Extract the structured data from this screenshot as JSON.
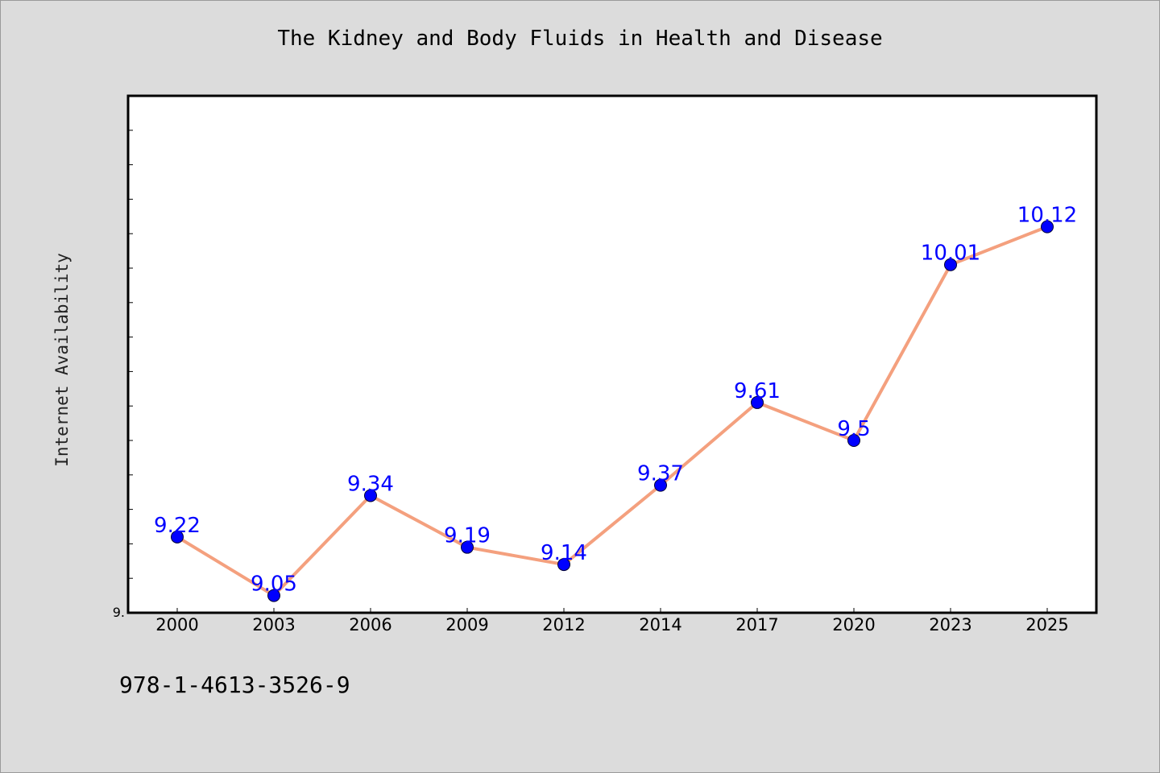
{
  "chart_data": {
    "type": "line",
    "title": "The Kidney and Body Fluids in Health and Disease",
    "xlabel": "",
    "ylabel": "Internet Availability",
    "categories": [
      "2000",
      "2003",
      "2006",
      "2009",
      "2012",
      "2014",
      "2017",
      "2020",
      "2023",
      "2025"
    ],
    "series": [
      {
        "values": [
          9.22,
          9.05,
          9.34,
          9.19,
          9.14,
          9.37,
          9.61,
          9.5,
          10.01,
          10.12
        ],
        "labels": [
          "9.22",
          "9.05",
          "9.34",
          "9.19",
          "9.14",
          "9.37",
          "9.61",
          "9.5",
          "10.01",
          "10.12"
        ]
      }
    ],
    "ylim": [
      9.0,
      10.5
    ],
    "yticks": [
      {
        "value": 9.0,
        "label": "9."
      }
    ],
    "grid": false,
    "line_color": "#f4a07e",
    "marker_color": "#0000ff",
    "label_color": "#0000ff"
  },
  "footer": {
    "isbn": "978-1-4613-3526-9"
  }
}
